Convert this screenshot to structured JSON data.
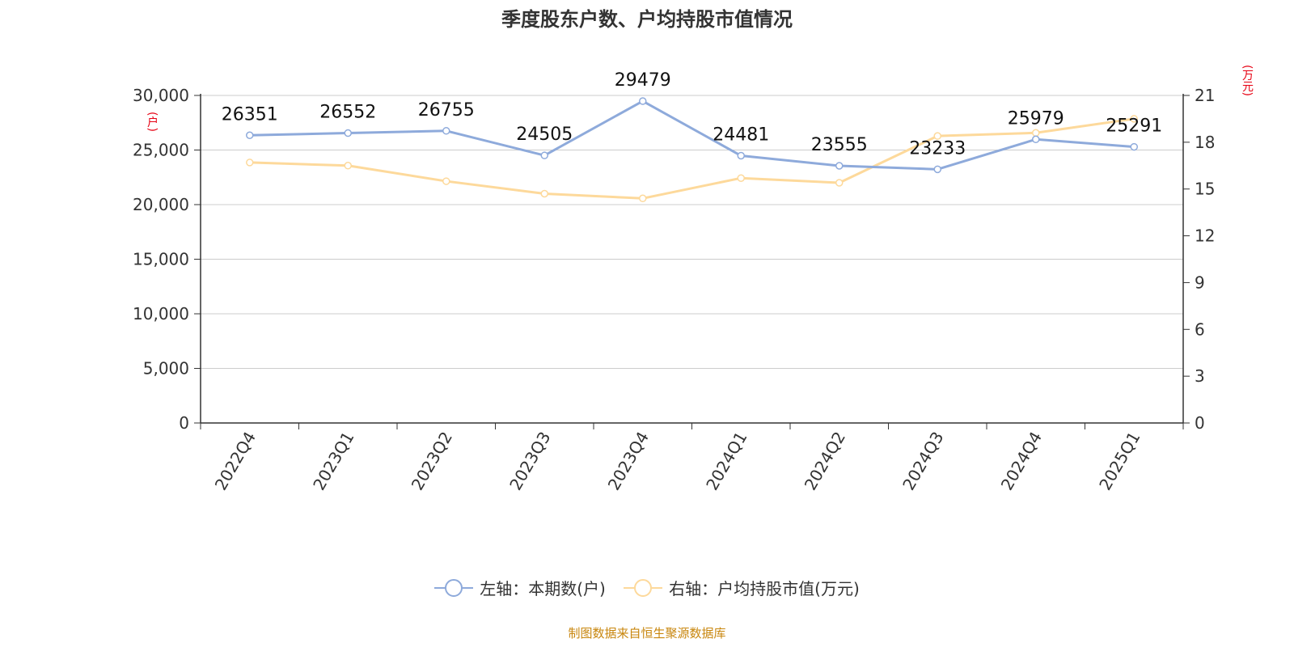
{
  "title": "季度股东户数、户均持股市值情况",
  "left_unit": "(户)",
  "right_unit": "(万元)",
  "legend": {
    "left_label": "左轴：本期数(户)",
    "right_label": "右轴：户均持股市值(万元)"
  },
  "source": "制图数据来自恒生聚源数据库",
  "colors": {
    "left_series": "#8eaadb",
    "right_series": "#fdd99b",
    "unit_text": "#e60012",
    "source_text": "#c8860d"
  },
  "chart_data": {
    "type": "line",
    "title": "季度股东户数、户均持股市值情况",
    "categories": [
      "2022Q4",
      "2023Q1",
      "2023Q2",
      "2023Q3",
      "2023Q4",
      "2024Q1",
      "2024Q2",
      "2024Q3",
      "2024Q4",
      "2025Q1"
    ],
    "left_axis": {
      "label": "(户)",
      "ylim": [
        0,
        30000
      ],
      "ticks": [
        "0",
        "5,000",
        "10,000",
        "15,000",
        "20,000",
        "25,000",
        "30,000"
      ]
    },
    "right_axis": {
      "label": "(万元)",
      "ylim": [
        0,
        21
      ],
      "ticks": [
        "0",
        "3",
        "6",
        "9",
        "12",
        "15",
        "18",
        "21"
      ]
    },
    "grid": true,
    "legend_position": "bottom",
    "series": [
      {
        "name": "左轴：本期数(户)",
        "axis": "left",
        "values": [
          26351,
          26552,
          26755,
          24505,
          29479,
          24481,
          23555,
          23233,
          25979,
          25291
        ],
        "data_labels": [
          "26351",
          "26552",
          "26755",
          "24505",
          "29479",
          "24481",
          "23555",
          "23233",
          "25979",
          "25291"
        ]
      },
      {
        "name": "右轴：户均持股市值(万元)",
        "axis": "right",
        "values": [
          16.7,
          16.5,
          15.5,
          14.7,
          14.4,
          15.7,
          15.4,
          18.4,
          18.6,
          19.5
        ]
      }
    ]
  }
}
